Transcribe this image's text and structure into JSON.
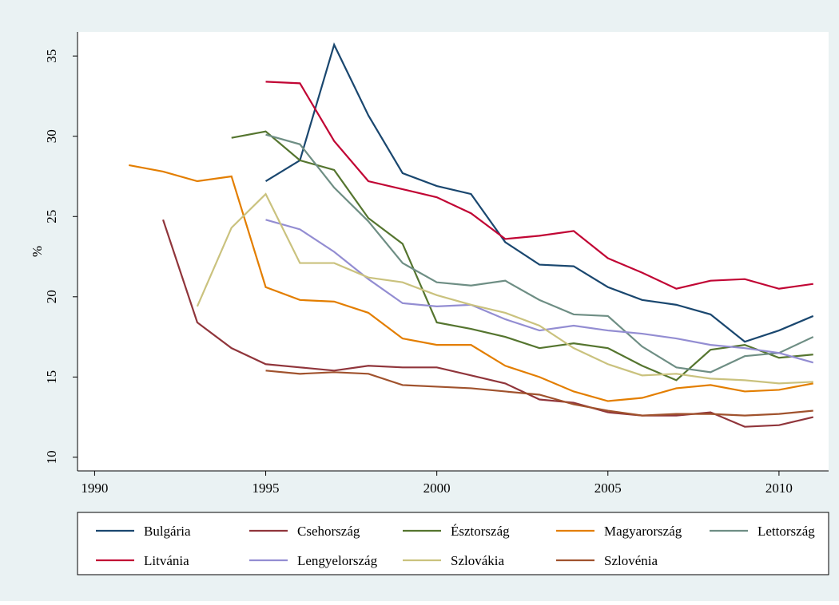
{
  "chart_data": {
    "type": "line",
    "ylabel": "%",
    "x": [
      1991,
      1992,
      1993,
      1994,
      1995,
      1996,
      1997,
      1998,
      1999,
      2000,
      2001,
      2002,
      2003,
      2004,
      2005,
      2006,
      2007,
      2008,
      2009,
      2010,
      2011
    ],
    "xlim": [
      1989.5,
      2011.45
    ],
    "xticks": [
      1990,
      1995,
      2000,
      2005,
      2010
    ],
    "ylim": [
      9.15,
      36.5
    ],
    "yticks": [
      10,
      15,
      20,
      25,
      30,
      35
    ],
    "grid": false,
    "series": [
      {
        "name": "Bulgária",
        "color": "#1a476f",
        "values": [
          null,
          null,
          null,
          null,
          27.2,
          28.5,
          35.7,
          31.3,
          27.7,
          26.9,
          26.4,
          23.4,
          22.0,
          21.9,
          20.6,
          19.8,
          19.5,
          18.9,
          17.2,
          17.9,
          18.8
        ]
      },
      {
        "name": "Csehország",
        "color": "#90353b",
        "values": [
          null,
          24.8,
          18.4,
          16.8,
          15.8,
          15.6,
          15.4,
          15.7,
          15.6,
          15.6,
          15.1,
          14.6,
          13.6,
          13.4,
          12.8,
          12.6,
          12.6,
          12.8,
          11.9,
          12.0,
          12.5
        ]
      },
      {
        "name": "Észtország",
        "color": "#55752f",
        "values": [
          null,
          null,
          null,
          29.9,
          30.3,
          28.5,
          27.9,
          24.9,
          23.3,
          18.4,
          18.0,
          17.5,
          16.8,
          17.1,
          16.8,
          15.7,
          14.8,
          16.7,
          17.0,
          16.2,
          16.4
        ]
      },
      {
        "name": "Magyarország",
        "color": "#e37e00",
        "values": [
          28.2,
          27.8,
          27.2,
          27.5,
          20.6,
          19.8,
          19.7,
          19.0,
          17.4,
          17.0,
          17.0,
          15.7,
          15.0,
          14.1,
          13.5,
          13.7,
          14.3,
          14.5,
          14.1,
          14.2,
          14.6
        ]
      },
      {
        "name": "Lettország",
        "color": "#6e8e84",
        "values": [
          null,
          null,
          null,
          null,
          30.1,
          29.5,
          26.8,
          24.7,
          22.1,
          20.9,
          20.7,
          21.0,
          19.8,
          18.9,
          18.8,
          16.9,
          15.6,
          15.3,
          16.3,
          16.5,
          17.5
        ]
      },
      {
        "name": "Litvánia",
        "color": "#c10534",
        "values": [
          null,
          null,
          null,
          null,
          33.4,
          33.3,
          29.7,
          27.2,
          26.7,
          26.2,
          25.2,
          23.6,
          23.8,
          24.1,
          22.4,
          21.5,
          20.5,
          21.0,
          21.1,
          20.5,
          20.8
        ]
      },
      {
        "name": "Lengyelország",
        "color": "#938dd2",
        "values": [
          null,
          null,
          null,
          null,
          24.8,
          24.2,
          22.8,
          21.1,
          19.6,
          19.4,
          19.5,
          18.6,
          17.9,
          18.2,
          17.9,
          17.7,
          17.4,
          17.0,
          16.8,
          16.5,
          15.9
        ]
      },
      {
        "name": "Szlovákia",
        "color": "#cac27e",
        "values": [
          null,
          null,
          19.4,
          24.3,
          26.4,
          22.1,
          22.1,
          21.2,
          20.9,
          20.1,
          19.5,
          19.0,
          18.2,
          16.8,
          15.8,
          15.1,
          15.2,
          14.9,
          14.8,
          14.6,
          14.7
        ]
      },
      {
        "name": "Szlovénia",
        "color": "#a0522d",
        "values": [
          null,
          null,
          null,
          null,
          15.4,
          15.2,
          15.3,
          15.2,
          14.5,
          14.4,
          14.3,
          14.1,
          13.9,
          13.3,
          12.9,
          12.6,
          12.7,
          12.7,
          12.6,
          12.7,
          12.9
        ]
      }
    ]
  }
}
